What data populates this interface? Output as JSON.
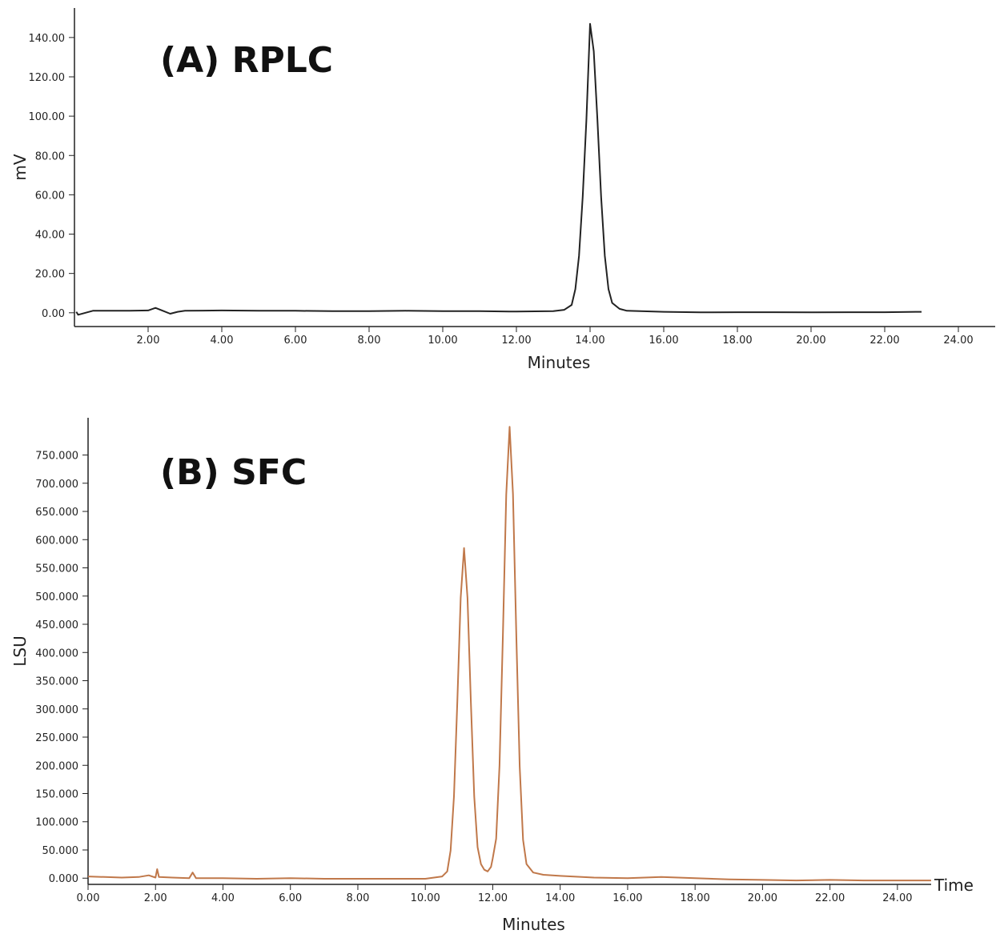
{
  "chart_data": [
    {
      "type": "line",
      "title": "(A) RPLC",
      "y_label": "mV",
      "x_label": "Minutes",
      "color": "#222222",
      "xlim": [
        0,
        25
      ],
      "ylim": [
        -7,
        155
      ],
      "xticks": [
        {
          "value": 2,
          "label": "2.00"
        },
        {
          "value": 4,
          "label": "4.00"
        },
        {
          "value": 6,
          "label": "6.00"
        },
        {
          "value": 8,
          "label": "8.00"
        },
        {
          "value": 10,
          "label": "10.00"
        },
        {
          "value": 12,
          "label": "12.00"
        },
        {
          "value": 14,
          "label": "14.00"
        },
        {
          "value": 16,
          "label": "16.00"
        },
        {
          "value": 18,
          "label": "18.00"
        },
        {
          "value": 20,
          "label": "20.00"
        },
        {
          "value": 22,
          "label": "22.00"
        },
        {
          "value": 24,
          "label": "24.00"
        }
      ],
      "yticks": [
        {
          "value": 0,
          "label": "0.00"
        },
        {
          "value": 20,
          "label": "20.00"
        },
        {
          "value": 40,
          "label": "40.00"
        },
        {
          "value": 60,
          "label": "60.00"
        },
        {
          "value": 80,
          "label": "80.00"
        },
        {
          "value": 100,
          "label": "100.00"
        },
        {
          "value": 120,
          "label": "120.00"
        },
        {
          "value": 140,
          "label": "140.00"
        }
      ],
      "x": [
        0.05,
        0.1,
        0.5,
        1,
        1.5,
        2,
        2.2,
        2.4,
        2.6,
        2.8,
        3,
        4,
        5,
        6,
        7,
        8,
        9,
        10,
        11,
        12,
        13,
        13.3,
        13.5,
        13.6,
        13.7,
        13.8,
        13.9,
        14.0,
        14.1,
        14.2,
        14.3,
        14.4,
        14.5,
        14.6,
        14.8,
        15,
        16,
        17,
        18,
        19,
        20,
        21,
        22,
        23
      ],
      "values": [
        0.5,
        -1,
        1,
        1,
        1,
        1.2,
        2.5,
        1,
        -0.5,
        0.5,
        1,
        1.2,
        1,
        1,
        0.8,
        0.8,
        1,
        0.8,
        0.8,
        0.6,
        0.8,
        1.5,
        4,
        12,
        29,
        59,
        98,
        147,
        133,
        98,
        59,
        29,
        12,
        5,
        2,
        1,
        0.5,
        0.2,
        0.3,
        0.3,
        0.2,
        0.3,
        0.3,
        0.5
      ]
    },
    {
      "type": "line",
      "title": "(B) SFC",
      "y_label": "LSU",
      "x_label": "Minutes",
      "annotation": "Time",
      "color": "#c0784a",
      "xlim": [
        0,
        25
      ],
      "ylim": [
        -11,
        816
      ],
      "xticks": [
        {
          "value": 0,
          "label": "0.00"
        },
        {
          "value": 2,
          "label": "2.00"
        },
        {
          "value": 4,
          "label": "4.00"
        },
        {
          "value": 6,
          "label": "6.00"
        },
        {
          "value": 8,
          "label": "8.00"
        },
        {
          "value": 10,
          "label": "10.00"
        },
        {
          "value": 12,
          "label": "12.00"
        },
        {
          "value": 14,
          "label": "14.00"
        },
        {
          "value": 16,
          "label": "16.00"
        },
        {
          "value": 18,
          "label": "18.00"
        },
        {
          "value": 20,
          "label": "20.00"
        },
        {
          "value": 22,
          "label": "22.00"
        },
        {
          "value": 24,
          "label": "24.00"
        }
      ],
      "yticks": [
        {
          "value": 0,
          "label": "0.000"
        },
        {
          "value": 50,
          "label": "50.000"
        },
        {
          "value": 100,
          "label": "100.000"
        },
        {
          "value": 150,
          "label": "150.000"
        },
        {
          "value": 200,
          "label": "200.000"
        },
        {
          "value": 250,
          "label": "250.000"
        },
        {
          "value": 300,
          "label": "300.000"
        },
        {
          "value": 350,
          "label": "350.000"
        },
        {
          "value": 400,
          "label": "400.000"
        },
        {
          "value": 450,
          "label": "450.000"
        },
        {
          "value": 500,
          "label": "500.000"
        },
        {
          "value": 550,
          "label": "550.000"
        },
        {
          "value": 600,
          "label": "600.000"
        },
        {
          "value": 650,
          "label": "650.000"
        },
        {
          "value": 700,
          "label": "700.000"
        },
        {
          "value": 750,
          "label": "750.000"
        }
      ],
      "x": [
        0,
        0.5,
        1,
        1.5,
        1.8,
        2.0,
        2.05,
        2.1,
        2.5,
        3.0,
        3.1,
        3.2,
        4,
        5,
        6,
        7,
        8,
        9,
        10,
        10.5,
        10.65,
        10.75,
        10.85,
        10.95,
        11.05,
        11.15,
        11.25,
        11.35,
        11.45,
        11.55,
        11.65,
        11.75,
        11.85,
        11.95,
        12.0,
        12.1,
        12.2,
        12.3,
        12.4,
        12.5,
        12.6,
        12.7,
        12.8,
        12.9,
        13.0,
        13.2,
        13.5,
        14,
        15,
        16,
        17,
        18,
        19,
        20,
        21,
        22,
        23,
        24,
        25
      ],
      "values": [
        3,
        2,
        1,
        2,
        5,
        1,
        16,
        2,
        1,
        0,
        10,
        0,
        0,
        -1,
        0,
        -1,
        -1,
        -1,
        -1,
        3,
        12,
        49,
        145,
        313,
        497,
        585,
        497,
        313,
        145,
        55,
        25,
        15,
        12,
        20,
        35,
        70,
        200,
        430,
        680,
        800,
        681,
        429,
        198,
        68,
        25,
        10,
        6,
        4,
        1,
        0,
        2,
        0,
        -2,
        -3,
        -4,
        -3,
        -4,
        -4,
        -4
      ]
    }
  ]
}
